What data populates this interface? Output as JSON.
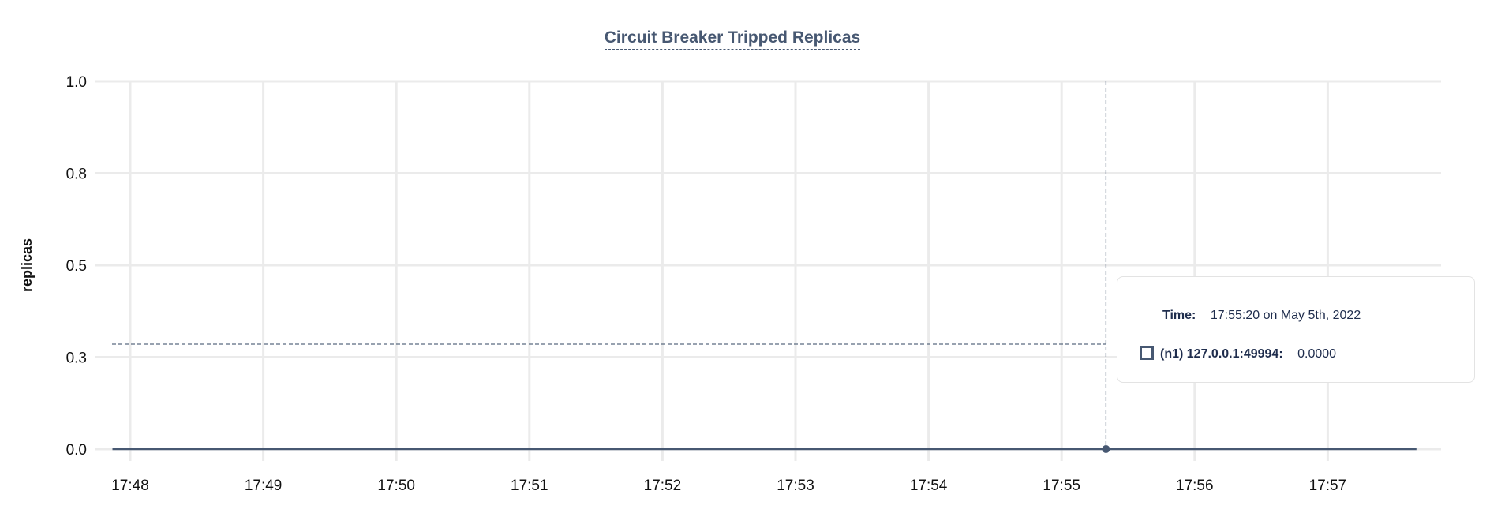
{
  "chart_data": {
    "type": "line",
    "title": "Circuit Breaker Tripped Replicas",
    "xlabel": "",
    "ylabel": "replicas",
    "x_ticks": [
      "17:48",
      "17:49",
      "17:50",
      "17:51",
      "17:52",
      "17:53",
      "17:54",
      "17:55",
      "17:56",
      "17:57"
    ],
    "y_ticks": [
      "1.0",
      "0.8",
      "0.5",
      "0.3",
      "0.0"
    ],
    "ylim": [
      0,
      1
    ],
    "xlim": [
      "17:47:52",
      "17:57:40"
    ],
    "grid": true,
    "series": [
      {
        "name": "(n1) 127.0.0.1:49994",
        "color": "#475872",
        "x": [
          "17:47:52",
          "17:57:40"
        ],
        "values": [
          0,
          0
        ]
      }
    ],
    "hover_point": {
      "x": "17:55:20",
      "y": 0
    }
  },
  "tooltip": {
    "time_label": "Time:",
    "time_value": "17:55:20 on May 5th, 2022",
    "series_label": "(n1) 127.0.0.1:49994:",
    "series_value": "0.0000"
  },
  "colors": {
    "series": "#475872",
    "grid": "#ebebeb",
    "crosshair": "#5b6b80"
  }
}
